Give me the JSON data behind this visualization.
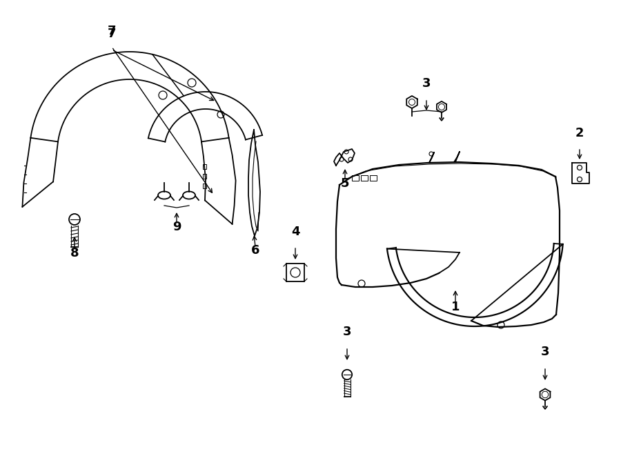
{
  "bg_color": "#ffffff",
  "line_color": "#000000",
  "lw": 1.3,
  "fs": 13,
  "parts": [
    "1",
    "2",
    "3",
    "4",
    "5",
    "6",
    "7",
    "8",
    "9"
  ]
}
